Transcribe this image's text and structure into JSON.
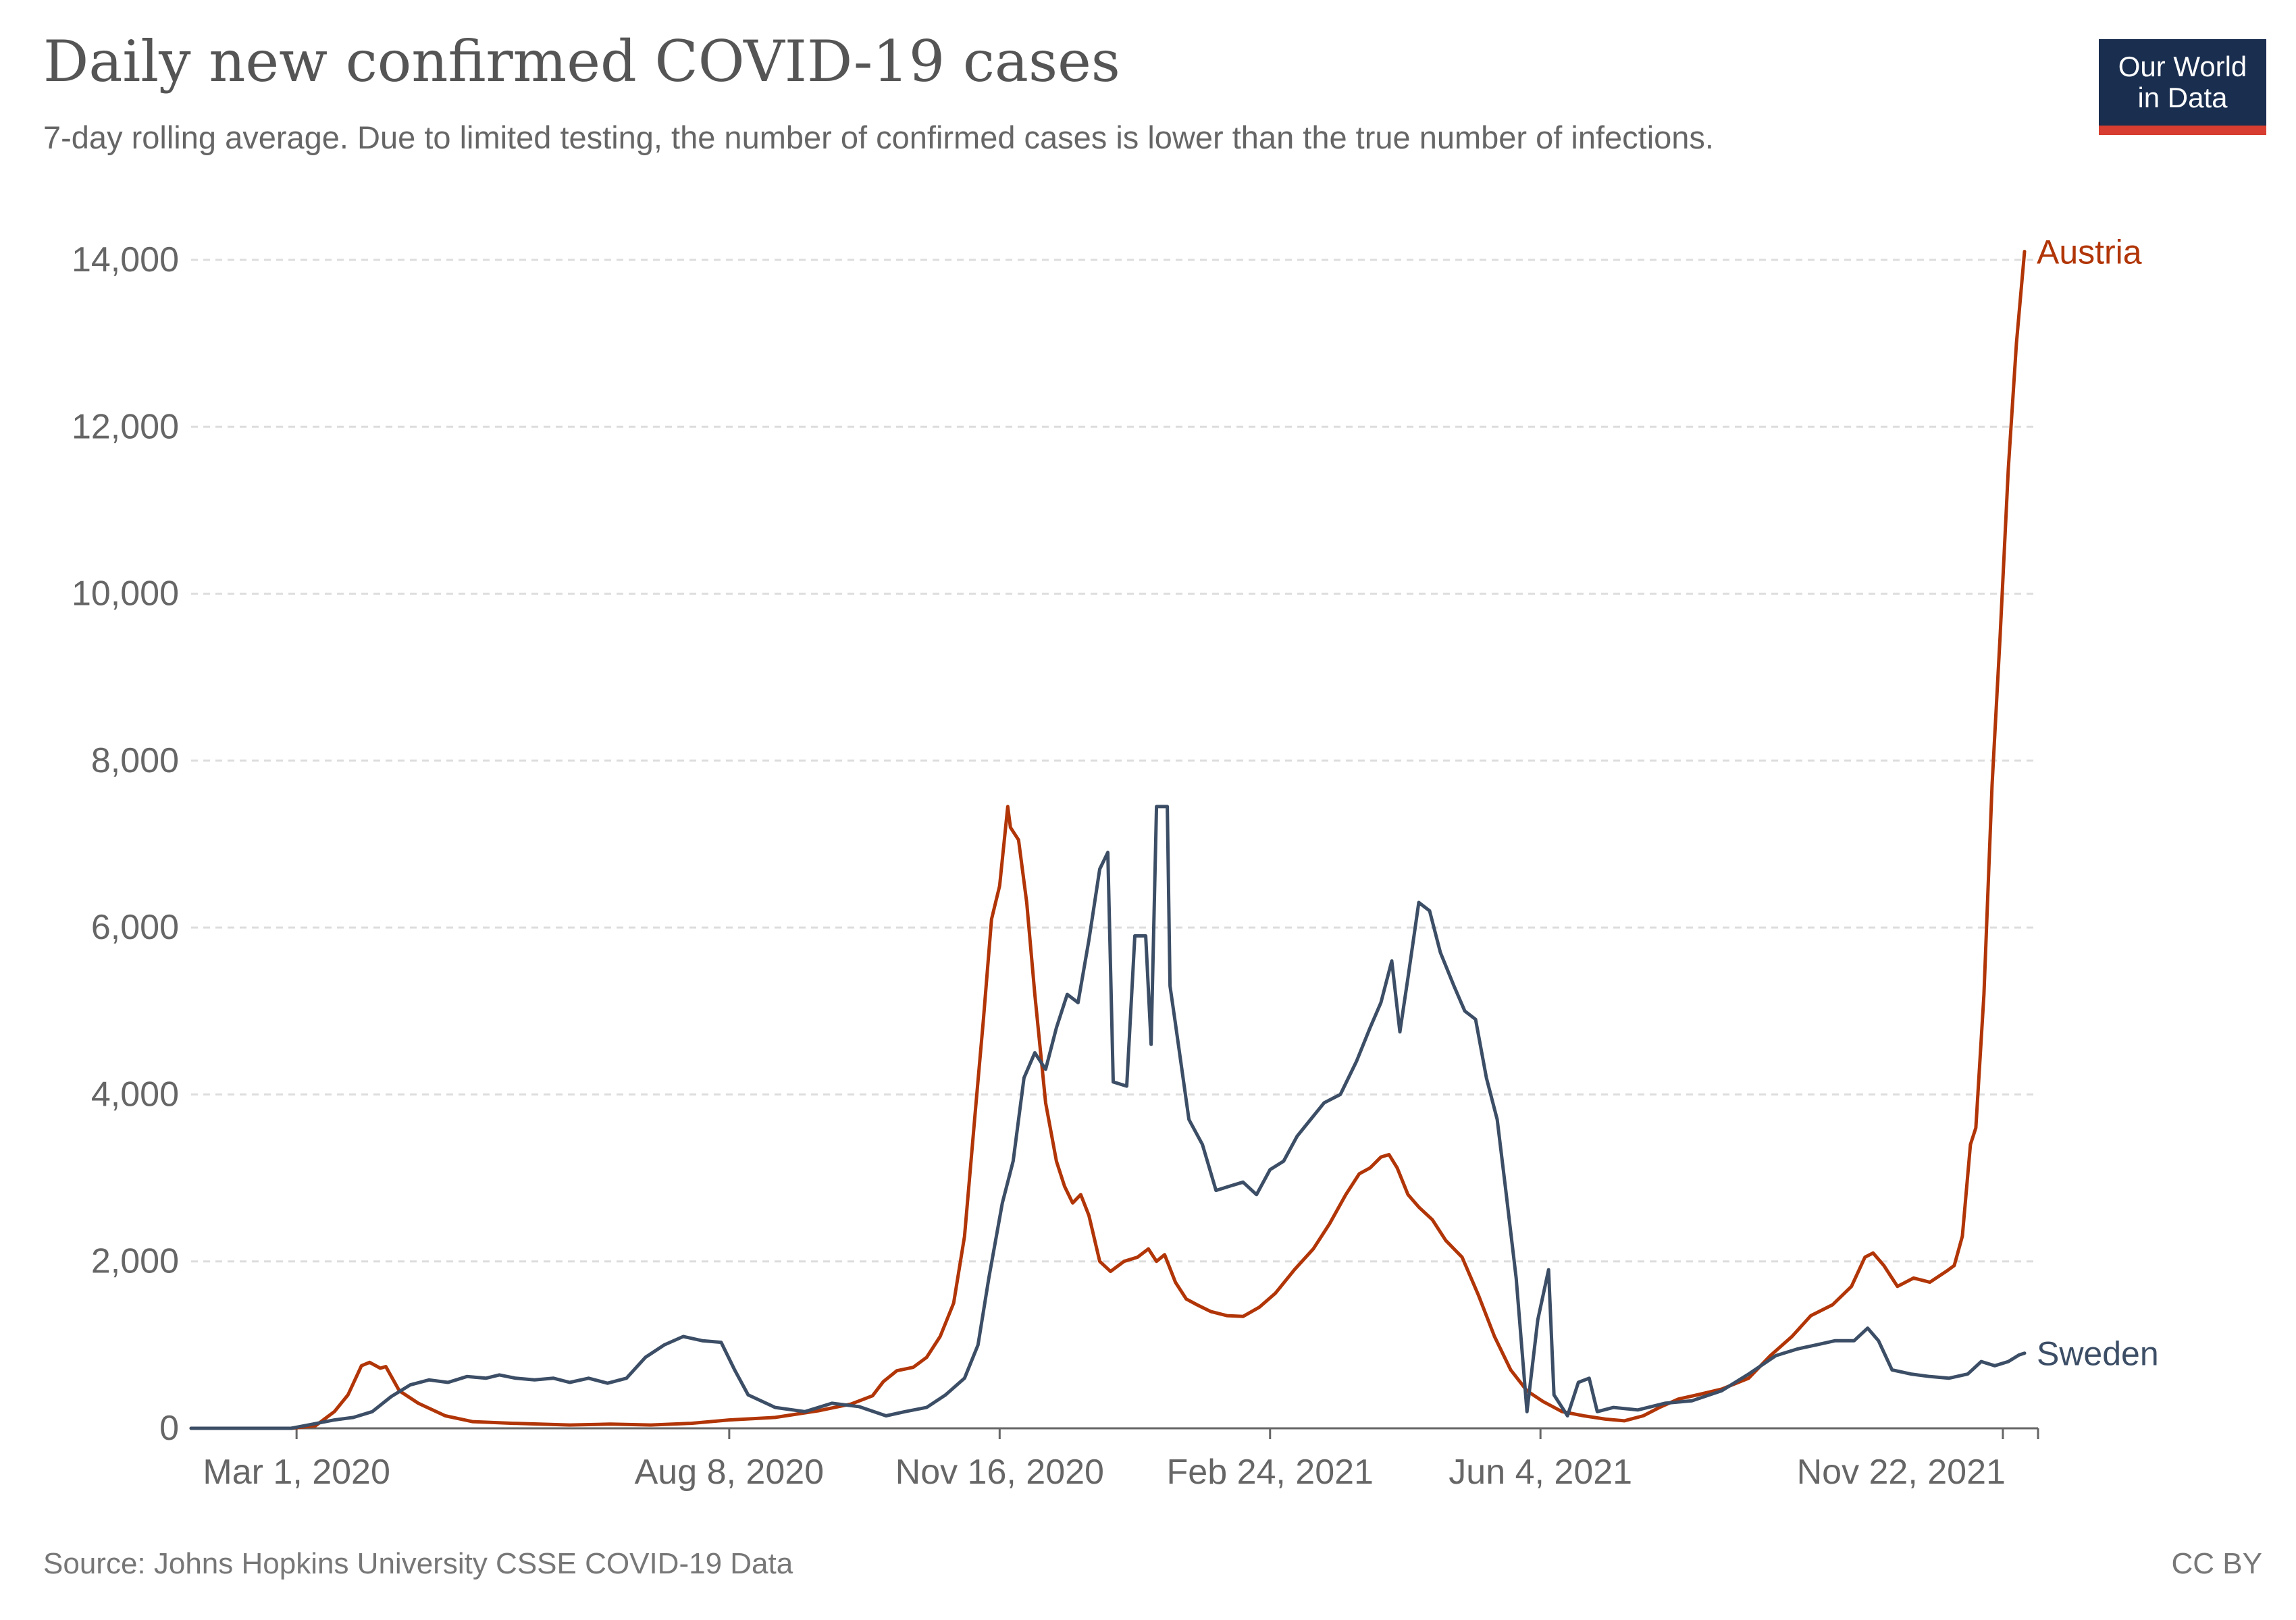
{
  "title": "Daily new confirmed COVID-19 cases",
  "subtitle": "7-day rolling average. Due to limited testing, the number of confirmed cases is lower than the true number of infections.",
  "logo": {
    "line1": "Our World",
    "line2": "in Data"
  },
  "footer": {
    "source": "Source: Johns Hopkins University CSSE COVID-19 Data",
    "license": "CC BY"
  },
  "colors": {
    "austria": "#b13507",
    "sweden": "#3c4e66",
    "grid": "#dddddd",
    "axis": "#666666"
  },
  "chart_data": {
    "type": "line",
    "title": "Daily new confirmed COVID-19 cases",
    "subtitle": "7-day rolling average. Due to limited testing, the number of confirmed cases is lower than the true number of infections.",
    "xlabel": "",
    "ylabel": "",
    "xlim": [
      "2020-01-22",
      "2021-12-05"
    ],
    "ylim": [
      0,
      14000
    ],
    "yticks": [
      "0",
      "2,000",
      "4,000",
      "6,000",
      "8,000",
      "10,000",
      "12,000",
      "14,000"
    ],
    "xticks": [
      {
        "date": "2020-03-01",
        "label": "Mar 1, 2020"
      },
      {
        "date": "2020-08-08",
        "label": "Aug 8, 2020"
      },
      {
        "date": "2020-11-16",
        "label": "Nov 16, 2020"
      },
      {
        "date": "2021-02-24",
        "label": "Feb 24, 2021"
      },
      {
        "date": "2021-06-04",
        "label": "Jun 4, 2021"
      },
      {
        "date": "2021-11-22",
        "label": "Nov 22, 2021"
      }
    ],
    "grid": true,
    "legend": "inline-right",
    "series": [
      {
        "name": "Austria",
        "points": [
          [
            "2020-01-22",
            0
          ],
          [
            "2020-02-28",
            0
          ],
          [
            "2020-03-08",
            30
          ],
          [
            "2020-03-15",
            200
          ],
          [
            "2020-03-20",
            400
          ],
          [
            "2020-03-25",
            750
          ],
          [
            "2020-03-28",
            790
          ],
          [
            "2020-04-01",
            720
          ],
          [
            "2020-04-03",
            740
          ],
          [
            "2020-04-08",
            450
          ],
          [
            "2020-04-15",
            300
          ],
          [
            "2020-04-25",
            150
          ],
          [
            "2020-05-05",
            80
          ],
          [
            "2020-05-20",
            60
          ],
          [
            "2020-06-10",
            40
          ],
          [
            "2020-06-25",
            50
          ],
          [
            "2020-07-10",
            40
          ],
          [
            "2020-07-25",
            60
          ],
          [
            "2020-08-08",
            100
          ],
          [
            "2020-08-25",
            130
          ],
          [
            "2020-09-10",
            210
          ],
          [
            "2020-09-22",
            290
          ],
          [
            "2020-09-30",
            390
          ],
          [
            "2020-10-04",
            560
          ],
          [
            "2020-10-09",
            690
          ],
          [
            "2020-10-15",
            730
          ],
          [
            "2020-10-20",
            850
          ],
          [
            "2020-10-25",
            1100
          ],
          [
            "2020-10-30",
            1500
          ],
          [
            "2020-11-03",
            2300
          ],
          [
            "2020-11-07",
            3800
          ],
          [
            "2020-11-10",
            4900
          ],
          [
            "2020-11-13",
            6100
          ],
          [
            "2020-11-16",
            6500
          ],
          [
            "2020-11-19",
            7450
          ],
          [
            "2020-11-20",
            7200
          ],
          [
            "2020-11-23",
            7050
          ],
          [
            "2020-11-26",
            6300
          ],
          [
            "2020-11-29",
            5200
          ],
          [
            "2020-12-03",
            3900
          ],
          [
            "2020-12-07",
            3200
          ],
          [
            "2020-12-10",
            2900
          ],
          [
            "2020-12-13",
            2700
          ],
          [
            "2020-12-16",
            2800
          ],
          [
            "2020-12-19",
            2550
          ],
          [
            "2020-12-23",
            2000
          ],
          [
            "2020-12-27",
            1880
          ],
          [
            "2021-01-01",
            2000
          ],
          [
            "2021-01-06",
            2050
          ],
          [
            "2021-01-10",
            2150
          ],
          [
            "2021-01-13",
            2000
          ],
          [
            "2021-01-16",
            2080
          ],
          [
            "2021-01-20",
            1750
          ],
          [
            "2021-01-24",
            1550
          ],
          [
            "2021-01-28",
            1480
          ],
          [
            "2021-02-02",
            1400
          ],
          [
            "2021-02-08",
            1350
          ],
          [
            "2021-02-14",
            1340
          ],
          [
            "2021-02-20",
            1450
          ],
          [
            "2021-02-26",
            1620
          ],
          [
            "2021-03-05",
            1900
          ],
          [
            "2021-03-12",
            2150
          ],
          [
            "2021-03-18",
            2450
          ],
          [
            "2021-03-24",
            2800
          ],
          [
            "2021-03-29",
            3050
          ],
          [
            "2021-04-02",
            3120
          ],
          [
            "2021-04-06",
            3250
          ],
          [
            "2021-04-09",
            3280
          ],
          [
            "2021-04-12",
            3120
          ],
          [
            "2021-04-16",
            2800
          ],
          [
            "2021-04-20",
            2650
          ],
          [
            "2021-04-25",
            2500
          ],
          [
            "2021-04-30",
            2250
          ],
          [
            "2021-05-06",
            2050
          ],
          [
            "2021-05-12",
            1600
          ],
          [
            "2021-05-18",
            1100
          ],
          [
            "2021-05-24",
            700
          ],
          [
            "2021-05-30",
            450
          ],
          [
            "2021-06-05",
            320
          ],
          [
            "2021-06-12",
            200
          ],
          [
            "2021-06-20",
            150
          ],
          [
            "2021-06-28",
            110
          ],
          [
            "2021-07-05",
            90
          ],
          [
            "2021-07-12",
            150
          ],
          [
            "2021-07-18",
            250
          ],
          [
            "2021-07-25",
            350
          ],
          [
            "2021-08-01",
            400
          ],
          [
            "2021-08-10",
            470
          ],
          [
            "2021-08-20",
            600
          ],
          [
            "2021-08-28",
            870
          ],
          [
            "2021-09-05",
            1100
          ],
          [
            "2021-09-12",
            1350
          ],
          [
            "2021-09-20",
            1480
          ],
          [
            "2021-09-27",
            1700
          ],
          [
            "2021-10-02",
            2050
          ],
          [
            "2021-10-05",
            2100
          ],
          [
            "2021-10-09",
            1950
          ],
          [
            "2021-10-14",
            1700
          ],
          [
            "2021-10-20",
            1800
          ],
          [
            "2021-10-26",
            1750
          ],
          [
            "2021-11-01",
            1880
          ],
          [
            "2021-11-04",
            1950
          ],
          [
            "2021-11-07",
            2300
          ],
          [
            "2021-11-10",
            3400
          ],
          [
            "2021-11-12",
            3600
          ],
          [
            "2021-11-15",
            5200
          ],
          [
            "2021-11-18",
            7700
          ],
          [
            "2021-11-21",
            9500
          ],
          [
            "2021-11-24",
            11500
          ],
          [
            "2021-11-27",
            13000
          ],
          [
            "2021-11-30",
            14100
          ]
        ]
      },
      {
        "name": "Sweden",
        "points": [
          [
            "2020-01-22",
            0
          ],
          [
            "2020-02-28",
            0
          ],
          [
            "2020-03-07",
            50
          ],
          [
            "2020-03-15",
            100
          ],
          [
            "2020-03-22",
            130
          ],
          [
            "2020-03-29",
            200
          ],
          [
            "2020-04-05",
            380
          ],
          [
            "2020-04-12",
            520
          ],
          [
            "2020-04-19",
            580
          ],
          [
            "2020-04-26",
            550
          ],
          [
            "2020-05-03",
            620
          ],
          [
            "2020-05-10",
            600
          ],
          [
            "2020-05-15",
            640
          ],
          [
            "2020-05-21",
            600
          ],
          [
            "2020-05-28",
            580
          ],
          [
            "2020-06-04",
            600
          ],
          [
            "2020-06-10",
            550
          ],
          [
            "2020-06-17",
            600
          ],
          [
            "2020-06-24",
            540
          ],
          [
            "2020-07-01",
            600
          ],
          [
            "2020-07-08",
            850
          ],
          [
            "2020-07-15",
            1000
          ],
          [
            "2020-07-22",
            1100
          ],
          [
            "2020-07-29",
            1050
          ],
          [
            "2020-08-05",
            1030
          ],
          [
            "2020-08-10",
            700
          ],
          [
            "2020-08-15",
            400
          ],
          [
            "2020-08-25",
            250
          ],
          [
            "2020-09-05",
            200
          ],
          [
            "2020-09-15",
            300
          ],
          [
            "2020-09-25",
            260
          ],
          [
            "2020-10-05",
            150
          ],
          [
            "2020-10-12",
            200
          ],
          [
            "2020-10-20",
            250
          ],
          [
            "2020-10-27",
            400
          ],
          [
            "2020-11-03",
            600
          ],
          [
            "2020-11-08",
            1000
          ],
          [
            "2020-11-12",
            1800
          ],
          [
            "2020-11-17",
            2700
          ],
          [
            "2020-11-21",
            3200
          ],
          [
            "2020-11-25",
            4200
          ],
          [
            "2020-11-29",
            4500
          ],
          [
            "2020-12-03",
            4300
          ],
          [
            "2020-12-07",
            4800
          ],
          [
            "2020-12-11",
            5200
          ],
          [
            "2020-12-15",
            5100
          ],
          [
            "2020-12-19",
            5850
          ],
          [
            "2020-12-23",
            6700
          ],
          [
            "2020-12-26",
            6900
          ],
          [
            "2020-12-28",
            4150
          ],
          [
            "2021-01-02",
            4100
          ],
          [
            "2021-01-05",
            5900
          ],
          [
            "2021-01-09",
            5900
          ],
          [
            "2021-01-11",
            4600
          ],
          [
            "2021-01-13",
            7450
          ],
          [
            "2021-01-17",
            7450
          ],
          [
            "2021-01-18",
            5300
          ],
          [
            "2021-01-20",
            4850
          ],
          [
            "2021-01-25",
            3700
          ],
          [
            "2021-01-30",
            3400
          ],
          [
            "2021-02-04",
            2850
          ],
          [
            "2021-02-09",
            2900
          ],
          [
            "2021-02-14",
            2950
          ],
          [
            "2021-02-19",
            2800
          ],
          [
            "2021-02-24",
            3100
          ],
          [
            "2021-03-01",
            3200
          ],
          [
            "2021-03-06",
            3500
          ],
          [
            "2021-03-11",
            3700
          ],
          [
            "2021-03-16",
            3900
          ],
          [
            "2021-03-22",
            4000
          ],
          [
            "2021-03-28",
            4400
          ],
          [
            "2021-04-02",
            4800
          ],
          [
            "2021-04-06",
            5100
          ],
          [
            "2021-04-10",
            5600
          ],
          [
            "2021-04-13",
            4750
          ],
          [
            "2021-04-16",
            5400
          ],
          [
            "2021-04-20",
            6300
          ],
          [
            "2021-04-24",
            6200
          ],
          [
            "2021-04-28",
            5700
          ],
          [
            "2021-05-03",
            5300
          ],
          [
            "2021-05-07",
            5000
          ],
          [
            "2021-05-11",
            4900
          ],
          [
            "2021-05-15",
            4200
          ],
          [
            "2021-05-19",
            3700
          ],
          [
            "2021-05-22",
            2900
          ],
          [
            "2021-05-26",
            1800
          ],
          [
            "2021-05-30",
            200
          ],
          [
            "2021-06-03",
            1300
          ],
          [
            "2021-06-07",
            1900
          ],
          [
            "2021-06-09",
            400
          ],
          [
            "2021-06-14",
            150
          ],
          [
            "2021-06-18",
            550
          ],
          [
            "2021-06-22",
            600
          ],
          [
            "2021-06-25",
            200
          ],
          [
            "2021-07-01",
            250
          ],
          [
            "2021-07-10",
            220
          ],
          [
            "2021-07-20",
            300
          ],
          [
            "2021-07-30",
            330
          ],
          [
            "2021-08-10",
            450
          ],
          [
            "2021-08-20",
            650
          ],
          [
            "2021-08-30",
            870
          ],
          [
            "2021-09-07",
            950
          ],
          [
            "2021-09-14",
            1000
          ],
          [
            "2021-09-21",
            1050
          ],
          [
            "2021-09-28",
            1050
          ],
          [
            "2021-10-03",
            1200
          ],
          [
            "2021-10-07",
            1050
          ],
          [
            "2021-10-12",
            700
          ],
          [
            "2021-10-19",
            650
          ],
          [
            "2021-10-26",
            620
          ],
          [
            "2021-11-02",
            600
          ],
          [
            "2021-11-09",
            650
          ],
          [
            "2021-11-14",
            800
          ],
          [
            "2021-11-19",
            750
          ],
          [
            "2021-11-24",
            800
          ],
          [
            "2021-11-28",
            880
          ],
          [
            "2021-11-30",
            900
          ]
        ]
      }
    ]
  }
}
